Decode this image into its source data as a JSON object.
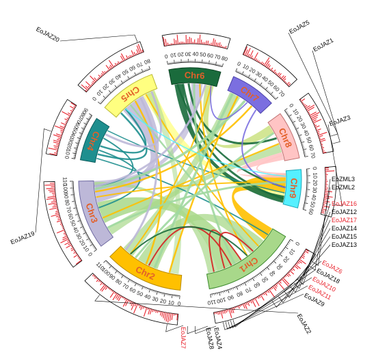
{
  "chromosomes": [
    {
      "name": "Chr1",
      "length": 110,
      "fill": "#a8d88a",
      "edge": "#3c8a2e",
      "label_color": "#e2602a"
    },
    {
      "name": "Chr2",
      "length": 110,
      "fill": "#ffc000",
      "edge": "#b88a00",
      "label_color": "#e2602a"
    },
    {
      "name": "Chr3",
      "length": 110,
      "fill": "#bdb8d8",
      "edge": "#6d68a0",
      "label_color": "#e2602a"
    },
    {
      "name": "Chr4",
      "length": 90,
      "fill": "#1f8f8f",
      "edge": "#0c5e5e",
      "label_color": "#e2602a"
    },
    {
      "name": "Chr5",
      "length": 80,
      "fill": "#ffff80",
      "edge": "#b8b830",
      "label_color": "#e2602a"
    },
    {
      "name": "Chr6",
      "length": 80,
      "fill": "#1a6b3c",
      "edge": "#0b4222",
      "label_color": "#e2602a"
    },
    {
      "name": "Chr7",
      "length": 70,
      "fill": "#7b6fe0",
      "edge": "#4a40a8",
      "label_color": "#e2602a"
    },
    {
      "name": "Chr8",
      "length": 70,
      "fill": "#ffc4c4",
      "edge": "#c07070",
      "label_color": "#e2602a"
    },
    {
      "name": "Chr9",
      "length": 60,
      "fill": "#55f0ff",
      "edge": "#1aa8b8",
      "label_color": "#e2602a"
    }
  ],
  "genes": [
    {
      "name": "EoJAZ5",
      "color": "#000000"
    },
    {
      "name": "EoJAZ1",
      "color": "#000000"
    },
    {
      "name": "EoJAZ3",
      "color": "#000000"
    },
    {
      "name": "EoZML3",
      "color": "#000000"
    },
    {
      "name": "EoZML2",
      "color": "#000000"
    },
    {
      "name": "EoJAZ16",
      "color": "#e8202a"
    },
    {
      "name": "EoJAZ12",
      "color": "#000000"
    },
    {
      "name": "EoJAZ17",
      "color": "#e8202a"
    },
    {
      "name": "EoJAZ14",
      "color": "#000000"
    },
    {
      "name": "EoJAZ15",
      "color": "#000000"
    },
    {
      "name": "EoJAZ13",
      "color": "#000000"
    },
    {
      "name": "EoJAZ6",
      "color": "#e8202a"
    },
    {
      "name": "EoJAZ18",
      "color": "#000000"
    },
    {
      "name": "EoJAZ10",
      "color": "#e8202a"
    },
    {
      "name": "EoJAZ11",
      "color": "#e8202a"
    },
    {
      "name": "EoJAZ9",
      "color": "#000000"
    },
    {
      "name": "EoJAZ2",
      "color": "#000000"
    },
    {
      "name": "EoJAZ4",
      "color": "#000000"
    },
    {
      "name": "EoJAZ8",
      "color": "#000000"
    },
    {
      "name": "EoJAZ7",
      "color": "#e8202a"
    },
    {
      "name": "EoJAZ19",
      "color": "#000000"
    },
    {
      "name": "EoJAZ20",
      "color": "#000000"
    }
  ],
  "palette": {
    "density_bars": "#e8202a",
    "tick_ink": "#222222",
    "highlight_link": "#d62020"
  }
}
